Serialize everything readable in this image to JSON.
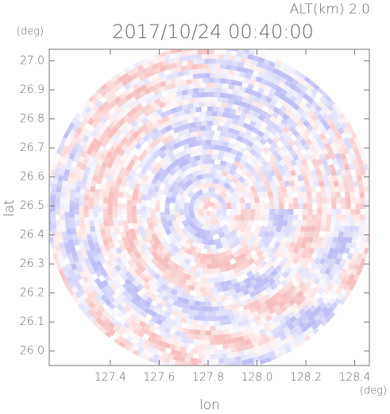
{
  "chart_data": {
    "type": "radar-ppi",
    "title": "2017/10/24 00:40:00",
    "subtitle": "ALT(km) 2.0",
    "x_label": "lon",
    "y_label": "lat",
    "x_unit": "(deg)",
    "y_unit": "(deg)",
    "xlim": [
      127.15,
      128.46
    ],
    "ylim": [
      25.95,
      27.04
    ],
    "xticks": [
      127.4,
      127.6,
      127.8,
      {
        "value": 128,
        "label": "128.0"
      },
      128.2,
      128.4
    ],
    "yticks": [
      {
        "value": 26,
        "label": "26.0"
      },
      26.1,
      26.2,
      26.3,
      26.4,
      26.5,
      26.6,
      26.7,
      26.8,
      26.9,
      {
        "value": 27,
        "label": "27.0"
      }
    ]
  }
}
